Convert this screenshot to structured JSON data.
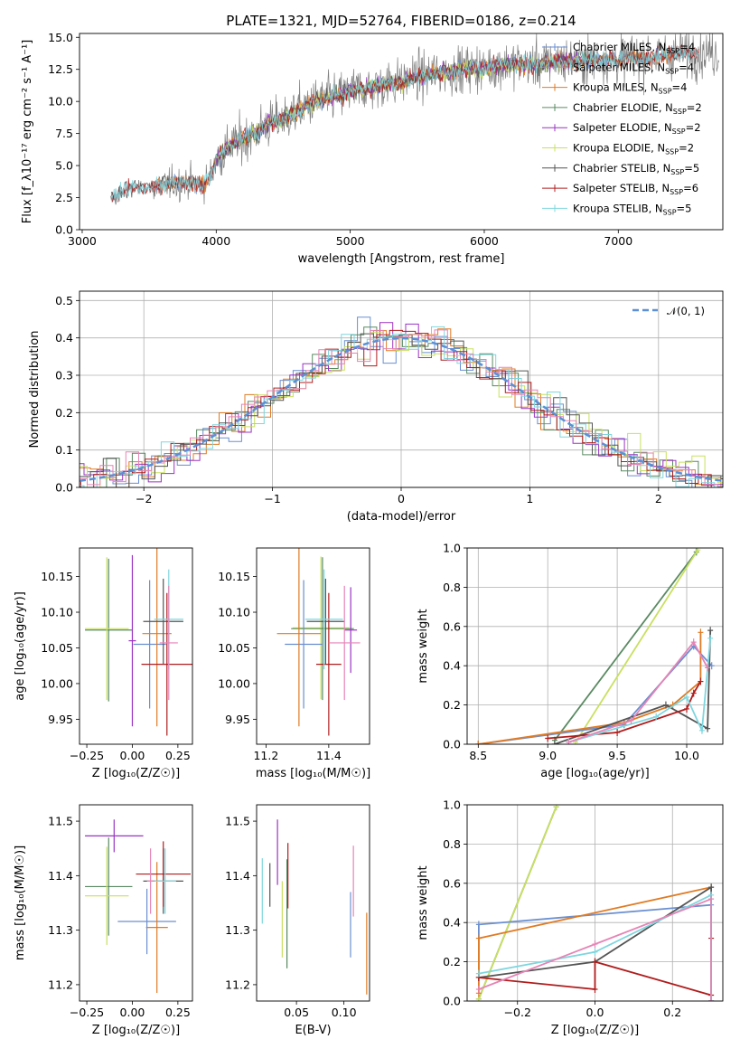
{
  "colors": {
    "chabrier_miles": "#6a8fd0",
    "salpeter_miles": "#e0e0e0",
    "kroupa_miles": "#e07b24",
    "chabrier_elodie": "#5a8a62",
    "salpeter_elodie": "#9a34c2",
    "kroupa_elodie": "#c8e060",
    "chabrier_stelib": "#555555",
    "salpeter_stelib": "#b01d1d",
    "kroupa_stelib": "#7fd6de",
    "pink": "#e684b6"
  },
  "chart_data": [
    {
      "type": "line",
      "title": "PLATE=1321, MJD=52764, FIBERID=0186, z=0.214",
      "xlabel": "wavelength [Angstrom, rest frame]",
      "ylabel": "Flux [f_λ10⁻¹⁷ erg cm⁻² s⁻¹ A⁻¹]",
      "xlim": [
        2980,
        7780
      ],
      "ylim": [
        0,
        15.3
      ],
      "xticks": [
        "3000",
        "4000",
        "5000",
        "6000",
        "7000"
      ],
      "yticks": [
        "0.0",
        "2.5",
        "5.0",
        "7.5",
        "10.0",
        "12.5",
        "15.0"
      ],
      "grid": false,
      "legend_placement": "top-right",
      "legend": [
        "Chabrier MILES, N_SSP=4",
        "Salpeter MILES, N_SSP=4",
        "Kroupa MILES, N_SSP=4",
        "Chabrier ELODIE, N_SSP=2",
        "Salpeter ELODIE, N_SSP=2",
        "Kroupa ELODIE, N_SSP=2",
        "Chabrier STELIB, N_SSP=5",
        "Salpeter STELIB, N_SSP=6",
        "Kroupa STELIB, N_SSP=5"
      ],
      "continuum": {
        "x": [
          3210,
          3300,
          3400,
          3500,
          3600,
          3700,
          3800,
          3900,
          3950,
          4000,
          4100,
          4200,
          4300,
          4400,
          4500,
          4600,
          4700,
          4800,
          4900,
          5000,
          5100,
          5200,
          5300,
          5400,
          5500,
          5600,
          5700,
          5800,
          5900,
          6000,
          6100,
          6200,
          6300,
          6400,
          6500,
          6600,
          6700,
          6800,
          6900,
          7000,
          7100,
          7200,
          7300,
          7400,
          7500
        ],
        "y": [
          2.3,
          3.0,
          3.3,
          3.2,
          3.5,
          3.6,
          3.7,
          3.5,
          4.0,
          5.6,
          6.5,
          7.0,
          7.6,
          8.3,
          8.6,
          9.2,
          9.8,
          10.2,
          10.4,
          10.8,
          11.0,
          11.2,
          11.4,
          11.6,
          11.9,
          12.1,
          12.3,
          12.4,
          12.6,
          12.6,
          12.8,
          12.9,
          12.9,
          12.9,
          13.1,
          13.1,
          13.2,
          13.2,
          13.3,
          13.3,
          13.4,
          13.4,
          13.6,
          13.7,
          13.8
        ]
      }
    },
    {
      "type": "step",
      "xlabel": "(data-model)/error",
      "ylabel": "Normed distribution",
      "xlim": [
        -2.5,
        2.5
      ],
      "ylim": [
        0,
        0.525
      ],
      "xticks": [
        "−2",
        "−1",
        "0",
        "1",
        "2"
      ],
      "yticks": [
        "0.0",
        "0.1",
        "0.2",
        "0.3",
        "0.4",
        "0.5"
      ],
      "grid": true,
      "reference_curve_label": "𝒩(0, 1)",
      "legend_placement": "top-right",
      "bin_width": 0.1
    },
    {
      "type": "errorbar",
      "xlabel": "Z [log₁₀(Z/Z☉)]",
      "ylabel": "age  [log₁₀(age/yr)]",
      "xlim": [
        -0.29,
        0.33
      ],
      "ylim": [
        9.915,
        10.19
      ],
      "xticks": [
        "−0.25",
        "0.00",
        "0.25"
      ],
      "yticks": [
        "9.95",
        "10.00",
        "10.05",
        "10.10",
        "10.15"
      ],
      "points": [
        {
          "x": -0.13,
          "y": 10.075,
          "xerr": 0.13,
          "yerr": 0.1,
          "color": "#5a8a62"
        },
        {
          "x": -0.14,
          "y": 10.077,
          "xerr": 0.12,
          "yerr": 0.1,
          "color": "#c8e060"
        },
        {
          "x": 0.0,
          "y": 10.06,
          "xerr": 0.02,
          "yerr": 0.12,
          "color": "#9a34c2"
        },
        {
          "x": 0.095,
          "y": 10.055,
          "xerr": 0.09,
          "yerr": 0.09,
          "color": "#6a8fd0"
        },
        {
          "x": 0.135,
          "y": 10.07,
          "xerr": 0.08,
          "yerr": 0.13,
          "color": "#e07b24"
        },
        {
          "x": 0.17,
          "y": 10.087,
          "xerr": 0.11,
          "yerr": 0.06,
          "color": "#555555"
        },
        {
          "x": 0.19,
          "y": 10.027,
          "xerr": 0.14,
          "yerr": 0.1,
          "color": "#b01d1d"
        },
        {
          "x": 0.2,
          "y": 10.09,
          "xerr": 0.08,
          "yerr": 0.07,
          "color": "#7fd6de"
        },
        {
          "x": 0.2,
          "y": 10.057,
          "xerr": 0.05,
          "yerr": 0.08,
          "color": "#e684b6"
        }
      ]
    },
    {
      "type": "errorbar",
      "xlabel": "mass [log₁₀(M/M☉)]",
      "xlim": [
        11.17,
        11.53
      ],
      "ylim": [
        9.915,
        10.19
      ],
      "xticks": [
        "11.2",
        "11.4"
      ],
      "yticks": [
        "9.95",
        "10.00",
        "10.05",
        "10.10",
        "10.15"
      ],
      "points": [
        {
          "x": 11.375,
          "y": 10.078,
          "xerr": 0.09,
          "yerr": 0.1,
          "color": "#c8e060"
        },
        {
          "x": 11.38,
          "y": 10.077,
          "xerr": 0.1,
          "yerr": 0.1,
          "color": "#5a8a62"
        },
        {
          "x": 11.47,
          "y": 10.075,
          "xerr": 0.02,
          "yerr": 0.06,
          "color": "#9a34c2"
        },
        {
          "x": 11.32,
          "y": 10.055,
          "xerr": 0.06,
          "yerr": 0.09,
          "color": "#6a8fd0"
        },
        {
          "x": 11.305,
          "y": 10.07,
          "xerr": 0.07,
          "yerr": 0.13,
          "color": "#e07b24"
        },
        {
          "x": 11.39,
          "y": 10.087,
          "xerr": 0.06,
          "yerr": 0.06,
          "color": "#555555"
        },
        {
          "x": 11.4,
          "y": 10.027,
          "xerr": 0.04,
          "yerr": 0.1,
          "color": "#b01d1d"
        },
        {
          "x": 11.385,
          "y": 10.09,
          "xerr": 0.06,
          "yerr": 0.07,
          "color": "#7fd6de"
        },
        {
          "x": 11.45,
          "y": 10.057,
          "xerr": 0.05,
          "yerr": 0.08,
          "color": "#e684b6"
        }
      ]
    },
    {
      "type": "line",
      "xlabel": "age  [log₁₀(age/yr)]",
      "ylabel": "mass weight",
      "xlim": [
        8.42,
        10.26
      ],
      "ylim": [
        0,
        1.0
      ],
      "xticks": [
        "8.5",
        "9.0",
        "9.5",
        "10.0"
      ],
      "yticks": [
        "0.0",
        "0.2",
        "0.4",
        "0.6",
        "0.8",
        "1.0"
      ],
      "grid": true,
      "series": [
        {
          "color": "#5a8a62",
          "x": [
            9.05,
            10.07
          ],
          "y": [
            0.02,
            0.98
          ]
        },
        {
          "color": "#c8e060",
          "x": [
            9.2,
            10.08
          ],
          "y": [
            0.01,
            0.99
          ]
        },
        {
          "color": "#6a8fd0",
          "x": [
            8.5,
            9.55,
            10.05,
            10.18
          ],
          "y": [
            0.0,
            0.1,
            0.5,
            0.4
          ]
        },
        {
          "color": "#e07b24",
          "x": [
            8.5,
            9.55,
            9.9,
            10.1,
            10.1
          ],
          "y": [
            0.0,
            0.11,
            0.2,
            0.32,
            0.57
          ]
        },
        {
          "color": "#555555",
          "x": [
            9.05,
            9.85,
            10.15,
            10.17
          ],
          "y": [
            0.0,
            0.2,
            0.08,
            0.58
          ]
        },
        {
          "color": "#b01d1d",
          "x": [
            9.0,
            9.5,
            10.0,
            10.05,
            10.1
          ],
          "y": [
            0.03,
            0.06,
            0.18,
            0.26,
            0.32
          ]
        },
        {
          "color": "#7fd6de",
          "x": [
            9.15,
            9.78,
            10.0,
            10.11,
            10.17
          ],
          "y": [
            0.01,
            0.14,
            0.24,
            0.07,
            0.54
          ]
        },
        {
          "color": "#e684b6",
          "x": [
            9.15,
            9.6,
            10.05,
            10.15
          ],
          "y": [
            0.01,
            0.12,
            0.52,
            0.39
          ]
        }
      ]
    },
    {
      "type": "errorbar",
      "xlabel": "Z [log₁₀(Z/Z☉)]",
      "ylabel": "mass [log₁₀(M/M☉)]",
      "xlim": [
        -0.29,
        0.33
      ],
      "ylim": [
        11.17,
        11.53
      ],
      "xticks": [
        "−0.25",
        "0.00",
        "0.25"
      ],
      "yticks": [
        "11.2",
        "11.3",
        "11.4",
        "11.5"
      ],
      "points": [
        {
          "x": -0.13,
          "y": 11.38,
          "xerr": 0.13,
          "yerr": 0.09,
          "color": "#5a8a62"
        },
        {
          "x": -0.14,
          "y": 11.363,
          "xerr": 0.12,
          "yerr": 0.09,
          "color": "#c8e060"
        },
        {
          "x": -0.1,
          "y": 11.473,
          "xerr": 0.16,
          "yerr": 0.03,
          "color": "#9a34c2"
        },
        {
          "x": 0.08,
          "y": 11.316,
          "xerr": 0.16,
          "yerr": 0.06,
          "color": "#6a8fd0"
        },
        {
          "x": 0.135,
          "y": 11.305,
          "xerr": 0.06,
          "yerr": 0.12,
          "color": "#e07b24"
        },
        {
          "x": 0.17,
          "y": 11.39,
          "xerr": 0.11,
          "yerr": 0.06,
          "color": "#555555"
        },
        {
          "x": 0.17,
          "y": 11.403,
          "xerr": 0.15,
          "yerr": 0.06,
          "color": "#b01d1d"
        },
        {
          "x": 0.18,
          "y": 11.39,
          "xerr": 0.06,
          "yerr": 0.06,
          "color": "#7fd6de"
        },
        {
          "x": 0.1,
          "y": 11.39,
          "xerr": 0.02,
          "yerr": 0.06,
          "color": "#e684b6"
        }
      ]
    },
    {
      "type": "errorbar",
      "xlabel": "E(B-V)",
      "xlim": [
        0.008,
        0.127
      ],
      "ylim": [
        11.17,
        11.53
      ],
      "xticks": [
        "0.05",
        "0.10"
      ],
      "yticks": [
        "11.2",
        "11.3",
        "11.4",
        "11.5"
      ],
      "points": [
        {
          "x": 0.014,
          "y": 11.372,
          "xerr": 0,
          "yerr": 0.06,
          "color": "#7fd6de"
        },
        {
          "x": 0.022,
          "y": 11.383,
          "xerr": 0,
          "yerr": 0.04,
          "color": "#555555"
        },
        {
          "x": 0.03,
          "y": 11.443,
          "xerr": 0,
          "yerr": 0.06,
          "color": "#9a34c2"
        },
        {
          "x": 0.035,
          "y": 11.32,
          "xerr": 0,
          "yerr": 0.07,
          "color": "#c8e060"
        },
        {
          "x": 0.04,
          "y": 11.33,
          "xerr": 0,
          "yerr": 0.1,
          "color": "#5a8a62"
        },
        {
          "x": 0.041,
          "y": 11.4,
          "xerr": 0,
          "yerr": 0.06,
          "color": "#b01d1d"
        },
        {
          "x": 0.107,
          "y": 11.31,
          "xerr": 0,
          "yerr": 0.06,
          "color": "#6a8fd0"
        },
        {
          "x": 0.11,
          "y": 11.39,
          "xerr": 0,
          "yerr": 0.065,
          "color": "#e684b6"
        },
        {
          "x": 0.124,
          "y": 11.257,
          "xerr": 0,
          "yerr": 0.075,
          "color": "#e07b24"
        }
      ]
    },
    {
      "type": "line",
      "xlabel": "Z [log₁₀(Z/Z☉)]",
      "ylabel": "mass weight",
      "xlim": [
        -0.33,
        0.33
      ],
      "ylim": [
        0,
        1.0
      ],
      "xticks": [
        "−0.2",
        "0.0",
        "0.2"
      ],
      "yticks": [
        "0.0",
        "0.2",
        "0.4",
        "0.6",
        "0.8",
        "1.0"
      ],
      "grid": true,
      "series": [
        {
          "color": "#5a8a62",
          "x": [
            -0.3,
            -0.1
          ],
          "y": [
            0.01,
            0.99
          ]
        },
        {
          "color": "#c8e060",
          "x": [
            -0.3,
            -0.1
          ],
          "y": [
            0.01,
            0.99
          ]
        },
        {
          "color": "#6a8fd0",
          "x": [
            -0.3,
            -0.3,
            0.3,
            0.3
          ],
          "y": [
            0.12,
            0.39,
            0.49,
            0.0
          ]
        },
        {
          "color": "#e07b24",
          "x": [
            -0.3,
            -0.3,
            0.3
          ],
          "y": [
            0.04,
            0.32,
            0.58
          ]
        },
        {
          "color": "#555555",
          "x": [
            -0.3,
            0.0,
            0.3,
            0.3
          ],
          "y": [
            0.12,
            0.2,
            0.58,
            0.0
          ]
        },
        {
          "color": "#b01d1d",
          "x": [
            -0.3,
            0.0,
            0.0,
            0.3,
            0.3
          ],
          "y": [
            0.12,
            0.06,
            0.2,
            0.03,
            0.32
          ]
        },
        {
          "color": "#7fd6de",
          "x": [
            -0.3,
            0.0,
            0.3,
            0.3
          ],
          "y": [
            0.14,
            0.25,
            0.54,
            0.0
          ]
        },
        {
          "color": "#e684b6",
          "x": [
            -0.3,
            0.0,
            0.3,
            0.3
          ],
          "y": [
            0.06,
            0.29,
            0.52,
            0.0
          ]
        }
      ]
    }
  ]
}
